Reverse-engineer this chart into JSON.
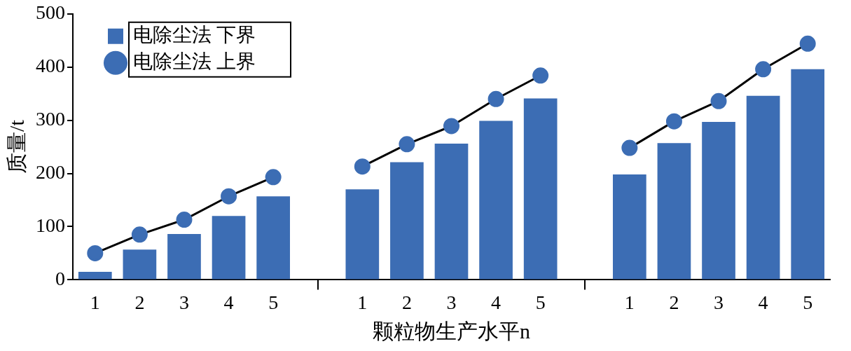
{
  "chart_data": {
    "type": "bar",
    "xlabel": "颗粒物生产水平n",
    "ylabel": "质量/t",
    "categories": [
      "1",
      "2",
      "3",
      "4",
      "5",
      null,
      "1",
      "2",
      "3",
      "4",
      "5",
      null,
      "1",
      "2",
      "3",
      "4",
      "5"
    ],
    "series": [
      {
        "name": "电除尘法 下界",
        "color": "#3c6db4",
        "values": [
          15,
          57,
          86,
          120,
          157,
          null,
          170,
          221,
          256,
          299,
          341,
          null,
          198,
          257,
          297,
          346,
          396
        ]
      },
      {
        "name": "电除尘法 上界",
        "type": "line",
        "color": "#3c6db4",
        "marker": "circle",
        "values": [
          50,
          85,
          113,
          157,
          193,
          null,
          213,
          255,
          289,
          340,
          384,
          null,
          248,
          298,
          336,
          396,
          444
        ]
      }
    ],
    "ylim": [
      0,
      500
    ],
    "yticks": [
      0,
      100,
      200,
      300,
      400,
      500
    ],
    "grid": false,
    "legend": "top left"
  }
}
